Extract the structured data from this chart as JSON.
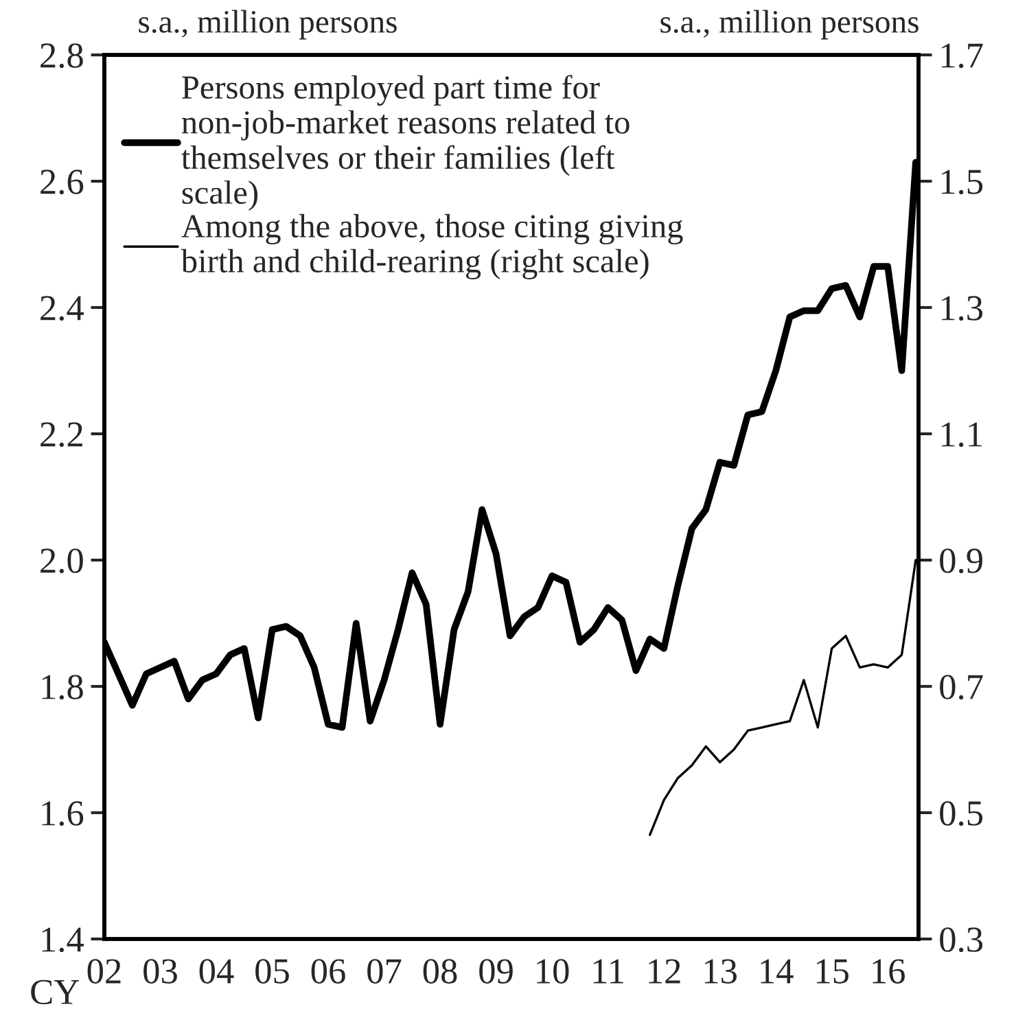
{
  "chart_data": {
    "type": "line",
    "ylabel": "s.a., million persons",
    "y2label": "s.a., million persons",
    "annotations": [
      "CY"
    ],
    "x": [
      2002.0,
      2002.25,
      2002.5,
      2002.75,
      2003.0,
      2003.25,
      2003.5,
      2003.75,
      2004.0,
      2004.25,
      2004.5,
      2004.75,
      2005.0,
      2005.25,
      2005.5,
      2005.75,
      2006.0,
      2006.25,
      2006.5,
      2006.75,
      2007.0,
      2007.25,
      2007.5,
      2007.75,
      2008.0,
      2008.25,
      2008.5,
      2008.75,
      2009.0,
      2009.25,
      2009.5,
      2009.75,
      2010.0,
      2010.25,
      2010.5,
      2010.75,
      2011.0,
      2011.25,
      2011.5,
      2011.75,
      2012.0,
      2012.25,
      2012.5,
      2012.75,
      2013.0,
      2013.25,
      2013.5,
      2013.75,
      2014.0,
      2014.25,
      2014.5,
      2014.75,
      2015.0,
      2015.25,
      2015.5,
      2015.75,
      2016.0,
      2016.25,
      2016.5
    ],
    "series": [
      {
        "name": "Persons employed part time for non-job-market reasons related to themselves or their families (left scale)",
        "color": "#000000",
        "values": [
          1.87,
          1.82,
          1.77,
          1.82,
          1.83,
          1.84,
          1.78,
          1.81,
          1.82,
          1.85,
          1.86,
          1.75,
          1.89,
          1.895,
          1.88,
          1.83,
          1.74,
          1.735,
          1.9,
          1.745,
          1.81,
          1.89,
          1.98,
          1.93,
          1.74,
          1.89,
          1.95,
          2.08,
          2.01,
          1.88,
          1.91,
          1.925,
          1.975,
          1.965,
          1.87,
          1.89,
          1.925,
          1.905,
          1.825,
          1.875,
          1.86,
          1.96,
          2.05,
          2.08,
          2.155,
          2.15,
          2.23,
          2.235,
          2.3,
          2.385,
          2.395,
          2.395,
          2.43,
          2.435,
          2.385,
          2.465,
          2.465,
          2.3,
          2.63
        ]
      },
      {
        "name": "Among the above, those citing giving birth and child-rearing (right scale)",
        "color": "#000000",
        "axis": "y2",
        "values": [
          null,
          null,
          null,
          null,
          null,
          null,
          null,
          null,
          null,
          null,
          null,
          null,
          null,
          null,
          null,
          null,
          null,
          null,
          null,
          null,
          null,
          null,
          null,
          null,
          null,
          null,
          null,
          null,
          null,
          null,
          null,
          null,
          null,
          null,
          null,
          null,
          null,
          null,
          null,
          0.465,
          0.52,
          0.555,
          0.575,
          0.605,
          0.58,
          0.6,
          0.63,
          0.635,
          0.64,
          0.645,
          0.71,
          0.635,
          0.76,
          0.78,
          0.73,
          0.735,
          0.73,
          0.75,
          0.9
        ]
      }
    ],
    "xlim": [
      2002,
      2016.55
    ],
    "xticks": [
      {
        "value": 2002,
        "label": "02"
      },
      {
        "value": 2003,
        "label": "03"
      },
      {
        "value": 2004,
        "label": "04"
      },
      {
        "value": 2005,
        "label": "05"
      },
      {
        "value": 2006,
        "label": "06"
      },
      {
        "value": 2007,
        "label": "07"
      },
      {
        "value": 2008,
        "label": "08"
      },
      {
        "value": 2009,
        "label": "09"
      },
      {
        "value": 2010,
        "label": "10"
      },
      {
        "value": 2011,
        "label": "11"
      },
      {
        "value": 2012,
        "label": "12"
      },
      {
        "value": 2013,
        "label": "13"
      },
      {
        "value": 2014,
        "label": "14"
      },
      {
        "value": 2015,
        "label": "15"
      },
      {
        "value": 2016,
        "label": "16"
      }
    ],
    "ylim": [
      1.4,
      2.8
    ],
    "yticks": [
      {
        "value": 1.4,
        "label": "1.4"
      },
      {
        "value": 1.6,
        "label": "1.6"
      },
      {
        "value": 1.8,
        "label": "1.8"
      },
      {
        "value": 2.0,
        "label": "2.0"
      },
      {
        "value": 2.2,
        "label": "2.2"
      },
      {
        "value": 2.4,
        "label": "2.4"
      },
      {
        "value": 2.6,
        "label": "2.6"
      },
      {
        "value": 2.8,
        "label": "2.8"
      }
    ],
    "y2lim": [
      0.3,
      1.7
    ],
    "y2ticks": [
      0.3,
      0.5,
      0.7,
      0.9,
      1.1,
      1.3,
      1.5,
      1.7
    ],
    "legend": "top left",
    "grid": false
  }
}
